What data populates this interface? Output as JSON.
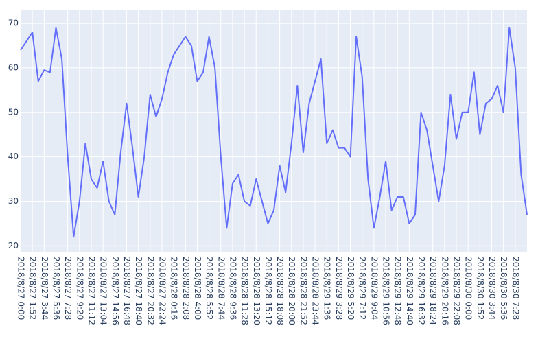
{
  "chart_data": {
    "type": "line",
    "categories": [
      "2018/8/27 0:00",
      null,
      "2018/8/27 1:52",
      null,
      "2018/8/27 3:44",
      null,
      "2018/8/27 5:36",
      null,
      "2018/8/27 7:28",
      null,
      "2018/8/27 9:20",
      null,
      "2018/8/27 11:12",
      null,
      "2018/8/27 13:04",
      null,
      "2018/8/27 14:56",
      null,
      "2018/8/27 16:48",
      null,
      "2018/8/27 18:40",
      null,
      "2018/8/27 20:32",
      null,
      "2018/8/27 22:24",
      null,
      "2018/8/28 0:16",
      null,
      "2018/8/28 2:08",
      null,
      "2018/8/28 4:00",
      null,
      "2018/8/28 5:52",
      null,
      "2018/8/28 7:44",
      null,
      "2018/8/28 9:36",
      null,
      "2018/8/28 11:28",
      null,
      "2018/8/28 13:20",
      null,
      "2018/8/28 15:12",
      null,
      "2018/8/28 18:08",
      null,
      "2018/8/28 20:00",
      null,
      "2018/8/28 21:52",
      null,
      "2018/8/28 23:44",
      null,
      "2018/8/29 1:36",
      null,
      "2018/8/29 3:28",
      null,
      "2018/8/29 5:20",
      null,
      "2018/8/29 7:12",
      null,
      "2018/8/29 9:04",
      null,
      "2018/8/29 10:56",
      null,
      "2018/8/29 12:48",
      null,
      "2018/8/29 14:40",
      null,
      "2018/8/29 16:32",
      null,
      "2018/8/29 18:24",
      null,
      "2018/8/29 20:16",
      null,
      "2018/8/29 22:08",
      null,
      "2018/8/30 0:00",
      null,
      "2018/8/30 1:52",
      null,
      "2018/8/30 3:44",
      null,
      "2018/8/30 5:36",
      null,
      "2018/8/30 7:28",
      null,
      null
    ],
    "values": [
      64,
      66,
      68,
      57,
      59.5,
      59,
      69,
      62,
      40,
      22,
      30,
      43,
      35,
      33,
      39,
      30,
      27,
      41,
      52,
      42,
      31,
      40,
      54,
      49,
      53,
      59,
      63,
      65,
      67,
      65,
      57,
      59,
      67,
      60,
      40,
      24,
      34,
      36,
      30,
      29,
      35,
      30,
      25,
      28,
      38,
      32,
      43,
      56,
      41,
      52,
      57,
      62,
      43,
      46,
      42,
      42,
      40,
      67,
      58,
      35,
      24,
      31,
      39,
      28,
      31,
      31,
      25,
      27,
      50,
      46,
      38,
      30,
      38,
      54,
      44,
      50,
      50,
      59,
      45,
      52,
      53,
      56,
      50,
      69,
      60,
      36,
      27
    ],
    "color": "#636efa",
    "ylim": [
      18.5,
      73.1
    ],
    "yticks": [
      20,
      30,
      40,
      50,
      60,
      70
    ],
    "grid": true
  }
}
